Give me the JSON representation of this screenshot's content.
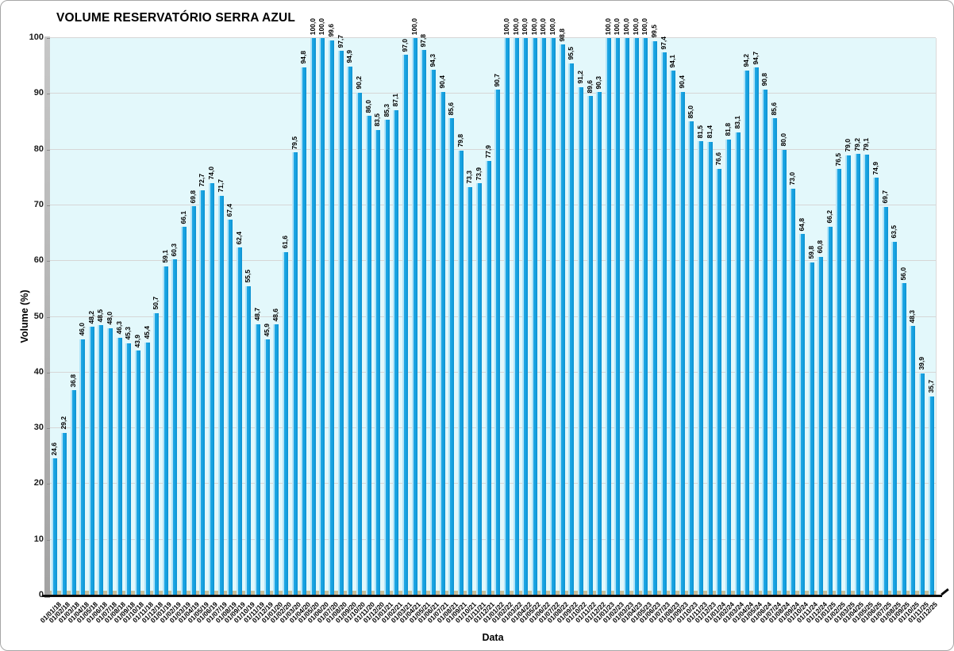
{
  "chart_data": {
    "type": "bar",
    "title": "VOLUME RESERVATÓRIO SERRA AZUL",
    "xlabel": "Data",
    "ylabel": "Volume (%)",
    "ylim": [
      0,
      100
    ],
    "yticks": [
      0,
      10,
      20,
      30,
      40,
      50,
      60,
      70,
      80,
      90,
      100
    ],
    "grid": true,
    "legend_position": "none",
    "decimal_separator": ",",
    "categories": [
      "01/01/18",
      "01/02/18",
      "01/03/18",
      "01/04/18",
      "01/05/18",
      "01/06/18",
      "01/07/18",
      "01/08/18",
      "01/09/18",
      "01/10/18",
      "01/11/18",
      "01/12/18",
      "01/01/19",
      "01/02/19",
      "01/03/19",
      "01/04/19",
      "01/05/19",
      "01/06/19",
      "01/07/19",
      "01/08/19",
      "01/09/19",
      "01/10/19",
      "01/11/19",
      "01/12/19",
      "01/01/20",
      "01/02/20",
      "01/03/20",
      "01/04/20",
      "01/05/20",
      "01/06/20",
      "01/07/20",
      "01/08/20",
      "01/09/20",
      "01/10/20",
      "01/11/20",
      "01/12/20",
      "01/01/21",
      "01/02/21",
      "01/03/21",
      "01/04/21",
      "01/05/21",
      "01/06/21",
      "01/07/21",
      "01/08/21",
      "01/09/21",
      "01/10/21",
      "01/11/21",
      "01/12/21",
      "01/01/22",
      "01/02/22",
      "01/03/22",
      "01/04/22",
      "01/05/22",
      "01/06/22",
      "01/07/22",
      "01/08/22",
      "01/09/22",
      "01/10/22",
      "01/11/22",
      "01/12/22",
      "01/01/23",
      "01/02/23",
      "01/03/23",
      "01/04/23",
      "01/05/23",
      "01/06/23",
      "01/07/23",
      "01/08/23",
      "01/09/23",
      "01/10/23",
      "01/11/23",
      "01/12/23",
      "01/01/24",
      "01/02/24",
      "01/03/24",
      "01/04/24",
      "01/05/24",
      "01/06/24",
      "01/07/24",
      "01/08/24",
      "01/09/24",
      "01/10/24",
      "01/11/24",
      "01/12/24",
      "01/01/25",
      "01/02/25",
      "01/03/25",
      "01/04/25",
      "01/05/25",
      "01/06/25",
      "01/07/25",
      "01/08/25",
      "01/09/25",
      "01/10/25",
      "01/11/25",
      "01/12/25"
    ],
    "values": [
      24.6,
      29.2,
      36.8,
      46.0,
      48.2,
      48.5,
      48.0,
      46.3,
      45.3,
      43.9,
      45.4,
      50.7,
      59.1,
      60.3,
      66.1,
      69.8,
      72.7,
      74.0,
      71.7,
      67.4,
      62.4,
      55.5,
      48.7,
      45.9,
      48.6,
      61.6,
      79.5,
      94.8,
      100.0,
      100.0,
      99.6,
      97.7,
      94.9,
      90.2,
      86.0,
      83.5,
      85.3,
      87.1,
      97.0,
      100.0,
      97.8,
      94.3,
      90.4,
      85.6,
      79.8,
      73.3,
      73.9,
      77.9,
      90.7,
      100.0,
      100.0,
      100.0,
      100.0,
      100.0,
      100.0,
      98.8,
      95.5,
      91.2,
      89.6,
      90.3,
      100.0,
      100.0,
      100.0,
      100.0,
      100.0,
      99.5,
      97.4,
      94.1,
      90.4,
      85.0,
      81.5,
      81.4,
      76.6,
      81.8,
      83.1,
      94.2,
      94.7,
      90.8,
      85.6,
      80.0,
      73.0,
      64.8,
      59.8,
      60.8,
      66.2,
      76.5,
      79.0,
      79.2,
      79.1,
      74.9,
      69.7,
      63.5,
      56.0,
      48.3,
      39.9,
      35.7
    ],
    "colors": {
      "bar_main": "#149fde",
      "bar_highlight": "#b2e4f8",
      "bar_dark_edge": "#0d90cf",
      "plot_background": "#e3f8fb",
      "gridline": "#d6d6d6",
      "floor": "#c9bd97",
      "wall": "#a2a2a2",
      "baseline": "#0d0d0d",
      "text": "#000000"
    }
  }
}
